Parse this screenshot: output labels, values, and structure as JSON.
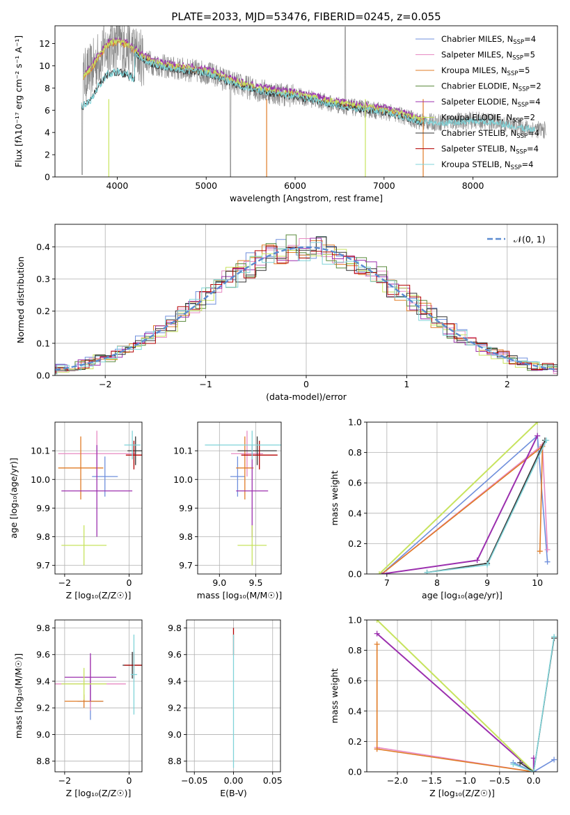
{
  "figure_title": "PLATE=2033, MJD=53476, FIBERID=0245, z=0.055",
  "colors": {
    "Chabrier MILES": "#6f8fdc",
    "Salpeter MILES": "#e78ac3",
    "Kroupa MILES": "#e07b26",
    "Chabrier ELODIE": "#5a8a3c",
    "Salpeter ELODIE": "#9b2fae",
    "Kroupa ELODIE": "#c7e35e",
    "Chabrier STELIB": "#333333",
    "Salpeter STELIB": "#b30000",
    "Kroupa STELIB": "#7fd3d8",
    "data": "#888888"
  },
  "chart_data": [
    {
      "id": "spectrum",
      "type": "line",
      "xlabel": "wavelength [Angstrom, rest frame]",
      "ylabel": "Flux [fλ10⁻¹⁷ erg cm⁻² s⁻¹ A⁻¹]",
      "xlim": [
        3300,
        8950
      ],
      "ylim": [
        0,
        13.6
      ],
      "xticks": [
        4000,
        5000,
        6000,
        7000,
        8000
      ],
      "yticks": [
        0,
        2,
        4,
        6,
        8,
        10,
        12
      ],
      "legend_position": "top-right",
      "legend": [
        {
          "name": "Chabrier MILES",
          "nssp": "4"
        },
        {
          "name": "Salpeter MILES",
          "nssp": "5"
        },
        {
          "name": "Kroupa MILES",
          "nssp": "5"
        },
        {
          "name": "Chabrier ELODIE",
          "nssp": "2"
        },
        {
          "name": "Salpeter ELODIE",
          "nssp": "4"
        },
        {
          "name": "Kroupa ELODIE",
          "nssp": "2"
        },
        {
          "name": "Chabrier STELIB",
          "nssp": "4"
        },
        {
          "name": "Salpeter STELIB",
          "nssp": "4"
        },
        {
          "name": "Kroupa STELIB",
          "nssp": "4"
        }
      ],
      "model_continuum": {
        "x": [
          3600,
          3700,
          3800,
          3900,
          4000,
          4100,
          4200,
          4300,
          4400,
          4600,
          4800,
          5000,
          5200,
          5400,
          5600,
          5800,
          6000,
          6200,
          6400,
          6600,
          6800,
          7000,
          7200,
          7400,
          7600,
          7800,
          8000,
          8200,
          8400,
          8600,
          8800
        ],
        "y": [
          8.8,
          9.5,
          10.8,
          11.8,
          12.0,
          11.8,
          11.2,
          10.6,
          10.2,
          9.8,
          9.6,
          9.4,
          8.8,
          8.2,
          7.8,
          7.5,
          7.3,
          7.0,
          6.6,
          6.3,
          6.1,
          5.9,
          5.5,
          5.0,
          4.9,
          5.0,
          5.1,
          5.0,
          4.7,
          4.4,
          4.2
        ]
      }
    },
    {
      "id": "residuals",
      "type": "bar",
      "xlabel": "(data-model)/error",
      "ylabel": "Normed distribution",
      "xlim": [
        -2.5,
        2.5
      ],
      "ylim": [
        0,
        0.47
      ],
      "xticks": [
        -2,
        -1,
        0,
        1,
        2
      ],
      "yticks": [
        0.0,
        0.1,
        0.2,
        0.3,
        0.4
      ],
      "reference_curve": "𝒩(0, 1)",
      "legend_position": "top-right",
      "grid": true
    },
    {
      "id": "age_vs_Z",
      "type": "scatter",
      "xlabel": "Z [log₁₀(Z/Z☉)]",
      "ylabel": "age  [log₁₀(age/yr)]",
      "xlim": [
        -2.3,
        0.4
      ],
      "ylim": [
        9.67,
        10.2
      ],
      "xticks": [
        -2,
        0
      ],
      "yticks": [
        9.7,
        9.8,
        9.9,
        10.0,
        10.1
      ],
      "grid": true,
      "errorbars": [
        {
          "series": "Chabrier MILES",
          "x": -0.75,
          "xerr": 0.4,
          "y": 10.01,
          "yerr": 0.07
        },
        {
          "series": "Salpeter MILES",
          "x": -1.0,
          "xerr": 1.2,
          "y": 10.09,
          "yerr": 0.08
        },
        {
          "series": "Kroupa MILES",
          "x": -1.5,
          "xerr": 0.7,
          "y": 10.04,
          "yerr": 0.11
        },
        {
          "series": "Salpeter ELODIE",
          "x": -1.0,
          "xerr": 1.1,
          "y": 9.96,
          "yerr": 0.16
        },
        {
          "series": "Kroupa ELODIE",
          "x": -1.4,
          "xerr": 0.7,
          "y": 9.77,
          "yerr": 0.07
        },
        {
          "series": "Chabrier STELIB",
          "x": 0.2,
          "xerr": 0.25,
          "y": 10.1,
          "yerr": 0.05
        },
        {
          "series": "Salpeter STELIB",
          "x": 0.15,
          "xerr": 0.25,
          "y": 10.085,
          "yerr": 0.05
        },
        {
          "series": "Kroupa STELIB",
          "x": 0.1,
          "xerr": 0.25,
          "y": 10.12,
          "yerr": 0.05
        }
      ]
    },
    {
      "id": "age_vs_mass",
      "type": "scatter",
      "xlabel": "mass [log₁₀(M/M☉)]",
      "ylabel": "",
      "xlim": [
        8.7,
        9.85
      ],
      "ylim": [
        9.67,
        10.2
      ],
      "xticks": [
        9.0,
        9.5
      ],
      "yticks": [
        9.7,
        9.8,
        9.9,
        10.0,
        10.1
      ],
      "grid": true,
      "errorbars": [
        {
          "series": "Chabrier MILES",
          "x": 9.25,
          "xerr": 0.1,
          "y": 10.01,
          "yerr": 0.07
        },
        {
          "series": "Salpeter MILES",
          "x": 9.38,
          "xerr": 0.22,
          "y": 10.09,
          "yerr": 0.08
        },
        {
          "series": "Kroupa MILES",
          "x": 9.35,
          "xerr": 0.12,
          "y": 10.04,
          "yerr": 0.11
        },
        {
          "series": "Salpeter ELODIE",
          "x": 9.45,
          "xerr": 0.22,
          "y": 9.96,
          "yerr": 0.16
        },
        {
          "series": "Kroupa ELODIE",
          "x": 9.45,
          "xerr": 0.2,
          "y": 9.77,
          "yerr": 0.07
        },
        {
          "series": "Chabrier STELIB",
          "x": 9.52,
          "xerr": 0.27,
          "y": 10.1,
          "yerr": 0.05
        },
        {
          "series": "Salpeter STELIB",
          "x": 9.55,
          "xerr": 0.25,
          "y": 10.085,
          "yerr": 0.05
        },
        {
          "series": "Kroupa STELIB",
          "x": 9.45,
          "xerr": 0.65,
          "y": 10.12,
          "yerr": 0.05
        }
      ]
    },
    {
      "id": "massweight_vs_age",
      "type": "line",
      "xlabel": "age  [log₁₀(age/yr)]",
      "ylabel": "mass weight",
      "xlim": [
        6.6,
        10.4
      ],
      "ylim": [
        0,
        1.0
      ],
      "xticks": [
        7,
        8,
        9,
        10
      ],
      "yticks": [
        0.0,
        0.2,
        0.4,
        0.6,
        0.8,
        1.0
      ],
      "grid": true,
      "series": [
        {
          "name": "Chabrier MILES",
          "x": [
            6.9,
            10.0,
            10.2
          ],
          "y": [
            0.0,
            0.91,
            0.08
          ]
        },
        {
          "name": "Salpeter MILES",
          "x": [
            6.9,
            10.1,
            10.2
          ],
          "y": [
            0.0,
            0.85,
            0.16
          ]
        },
        {
          "name": "Kroupa MILES",
          "x": [
            6.9,
            10.1,
            10.05
          ],
          "y": [
            0.0,
            0.84,
            0.15
          ]
        },
        {
          "name": "Salpeter ELODIE",
          "x": [
            6.9,
            8.8,
            10.0
          ],
          "y": [
            0.0,
            0.09,
            0.91
          ]
        },
        {
          "name": "Kroupa ELODIE",
          "x": [
            6.85,
            10.0
          ],
          "y": [
            0.0,
            1.0
          ]
        },
        {
          "name": "Chabrier STELIB",
          "x": [
            7.8,
            9.0,
            10.15
          ],
          "y": [
            0.01,
            0.07,
            0.88
          ]
        },
        {
          "name": "Kroupa STELIB",
          "x": [
            7.8,
            9.0,
            10.18
          ],
          "y": [
            0.01,
            0.06,
            0.88
          ]
        }
      ]
    },
    {
      "id": "mass_vs_Z",
      "type": "scatter",
      "xlabel": "Z [log₁₀(Z/Z☉)]",
      "ylabel": "mass [log₁₀(M/M☉)]",
      "xlim": [
        -2.3,
        0.4
      ],
      "ylim": [
        8.72,
        9.86
      ],
      "xticks": [
        -2,
        0
      ],
      "yticks": [
        8.8,
        9.0,
        9.2,
        9.4,
        9.6,
        9.8
      ],
      "grid": true,
      "errorbars": [
        {
          "series": "Chabrier MILES",
          "x": -1.2,
          "xerr": 0.4,
          "y": 9.25,
          "yerr": 0.14
        },
        {
          "series": "Salpeter MILES",
          "x": -1.2,
          "xerr": 1.1,
          "y": 9.38,
          "yerr": 0.2
        },
        {
          "series": "Kroupa MILES",
          "x": -1.4,
          "xerr": 0.6,
          "y": 9.25,
          "yerr": 0.05
        },
        {
          "series": "Salpeter ELODIE",
          "x": -1.2,
          "xerr": 0.8,
          "y": 9.43,
          "yerr": 0.18
        },
        {
          "series": "Kroupa ELODIE",
          "x": -1.4,
          "xerr": 0.7,
          "y": 9.38,
          "yerr": 0.12
        },
        {
          "series": "Chabrier STELIB",
          "x": 0.1,
          "xerr": 0.3,
          "y": 9.52,
          "yerr": 0.1
        },
        {
          "series": "Salpeter STELIB",
          "x": 0.15,
          "xerr": 0.3,
          "y": 9.52,
          "yerr": 0.1
        },
        {
          "series": "Kroupa STELIB",
          "x": 0.15,
          "xerr": 0.1,
          "y": 9.45,
          "yerr": 0.3
        }
      ]
    },
    {
      "id": "mass_vs_ebv",
      "type": "scatter",
      "xlabel": "E(B-V)",
      "ylabel": "",
      "xlim": [
        -0.06,
        0.06
      ],
      "ylim": [
        8.72,
        9.86
      ],
      "xticks": [
        -0.05,
        0.0,
        0.05
      ],
      "yticks": [
        8.8,
        9.0,
        9.2,
        9.4,
        9.6,
        9.8
      ],
      "grid": true,
      "errorbars": [
        {
          "series": "Salpeter STELIB",
          "x": 0.0,
          "xerr": 0.0,
          "y": 9.7,
          "yerr": 0.1
        },
        {
          "series": "Kroupa STELIB",
          "x": 0.0,
          "xerr": 0.0,
          "y": 9.25,
          "yerr": 0.5
        }
      ]
    },
    {
      "id": "massweight_vs_Z",
      "type": "line",
      "xlabel": "Z [log₁₀(Z/Z☉)]",
      "ylabel": "mass weight",
      "xlim": [
        -2.45,
        0.35
      ],
      "ylim": [
        0,
        1.0
      ],
      "xticks": [
        -2.0,
        -1.5,
        -1.0,
        -0.5,
        0.0
      ],
      "yticks": [
        0.0,
        0.2,
        0.4,
        0.6,
        0.8,
        1.0
      ],
      "grid": true,
      "series": [
        {
          "name": "Chabrier MILES",
          "x": [
            -0.3,
            0.0,
            0.3
          ],
          "y": [
            0.06,
            0.0,
            0.08
          ]
        },
        {
          "name": "Salpeter MILES",
          "x": [
            -2.3,
            0.0
          ],
          "y": [
            0.16,
            0.0
          ]
        },
        {
          "name": "Kroupa MILES",
          "x": [
            -2.3,
            -2.3,
            0.0
          ],
          "y": [
            0.84,
            0.15,
            0.0
          ]
        },
        {
          "name": "Salpeter ELODIE",
          "x": [
            -2.3,
            0.0,
            0.0
          ],
          "y": [
            0.91,
            0.0,
            0.09
          ]
        },
        {
          "name": "Kroupa ELODIE",
          "x": [
            -2.3,
            0.0
          ],
          "y": [
            1.0,
            0.0
          ]
        },
        {
          "name": "Chabrier STELIB",
          "x": [
            -0.2,
            0.0,
            0.3
          ],
          "y": [
            0.06,
            0.0,
            0.88
          ]
        },
        {
          "name": "Kroupa STELIB",
          "x": [
            -0.3,
            0.0,
            0.3
          ],
          "y": [
            0.05,
            0.0,
            0.89
          ]
        }
      ]
    }
  ]
}
